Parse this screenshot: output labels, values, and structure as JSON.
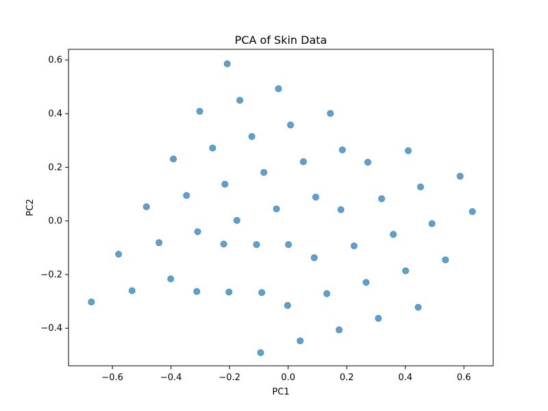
{
  "chart_data": {
    "type": "scatter",
    "title": "PCA of Skin Data",
    "xlabel": "PC1",
    "ylabel": "PC2",
    "xlim": [
      -0.75,
      0.7
    ],
    "ylim": [
      -0.54,
      0.64
    ],
    "xticks": [
      -0.6,
      -0.4,
      -0.2,
      0.0,
      0.2,
      0.4,
      0.6
    ],
    "xtick_labels": [
      "−0.6",
      "−0.4",
      "−0.2",
      "0.0",
      "0.2",
      "0.4",
      "0.6"
    ],
    "yticks": [
      -0.4,
      -0.2,
      0.0,
      0.2,
      0.4,
      0.6
    ],
    "ytick_labels": [
      "−0.4",
      "−0.2",
      "0.0",
      "0.2",
      "0.4",
      "0.6"
    ],
    "grid": false,
    "legend": "none",
    "marker_color": "#1f77b4",
    "marker_alpha": 0.7,
    "points": [
      {
        "x": -0.208,
        "y": 0.586
      },
      {
        "x": -0.033,
        "y": 0.493
      },
      {
        "x": -0.302,
        "y": 0.409
      },
      {
        "x": -0.165,
        "y": 0.45
      },
      {
        "x": 0.144,
        "y": 0.401
      },
      {
        "x": 0.008,
        "y": 0.358
      },
      {
        "x": -0.124,
        "y": 0.315
      },
      {
        "x": -0.258,
        "y": 0.272
      },
      {
        "x": 0.185,
        "y": 0.265
      },
      {
        "x": 0.41,
        "y": 0.262
      },
      {
        "x": -0.392,
        "y": 0.231
      },
      {
        "x": 0.052,
        "y": 0.221
      },
      {
        "x": 0.272,
        "y": 0.219
      },
      {
        "x": -0.083,
        "y": 0.181
      },
      {
        "x": 0.587,
        "y": 0.167
      },
      {
        "x": -0.216,
        "y": 0.137
      },
      {
        "x": 0.452,
        "y": 0.127
      },
      {
        "x": -0.347,
        "y": 0.095
      },
      {
        "x": 0.094,
        "y": 0.089
      },
      {
        "x": 0.319,
        "y": 0.083
      },
      {
        "x": -0.484,
        "y": 0.053
      },
      {
        "x": -0.04,
        "y": 0.045
      },
      {
        "x": 0.18,
        "y": 0.042
      },
      {
        "x": 0.629,
        "y": 0.035
      },
      {
        "x": -0.175,
        "y": 0.002
      },
      {
        "x": 0.491,
        "y": -0.01
      },
      {
        "x": -0.309,
        "y": -0.04
      },
      {
        "x": 0.359,
        "y": -0.05
      },
      {
        "x": -0.441,
        "y": -0.081
      },
      {
        "x": -0.22,
        "y": -0.086
      },
      {
        "x": -0.108,
        "y": -0.088
      },
      {
        "x": 0.001,
        "y": -0.088
      },
      {
        "x": 0.225,
        "y": -0.093
      },
      {
        "x": -0.579,
        "y": -0.124
      },
      {
        "x": 0.089,
        "y": -0.137
      },
      {
        "x": 0.537,
        "y": -0.145
      },
      {
        "x": 0.401,
        "y": -0.186
      },
      {
        "x": -0.401,
        "y": -0.216
      },
      {
        "x": 0.266,
        "y": -0.229
      },
      {
        "x": -0.533,
        "y": -0.26
      },
      {
        "x": -0.312,
        "y": -0.263
      },
      {
        "x": -0.202,
        "y": -0.265
      },
      {
        "x": -0.09,
        "y": -0.267
      },
      {
        "x": 0.132,
        "y": -0.271
      },
      {
        "x": -0.672,
        "y": -0.302
      },
      {
        "x": -0.002,
        "y": -0.315
      },
      {
        "x": 0.444,
        "y": -0.322
      },
      {
        "x": 0.308,
        "y": -0.363
      },
      {
        "x": 0.174,
        "y": -0.406
      },
      {
        "x": 0.041,
        "y": -0.447
      },
      {
        "x": -0.094,
        "y": -0.491
      }
    ]
  }
}
